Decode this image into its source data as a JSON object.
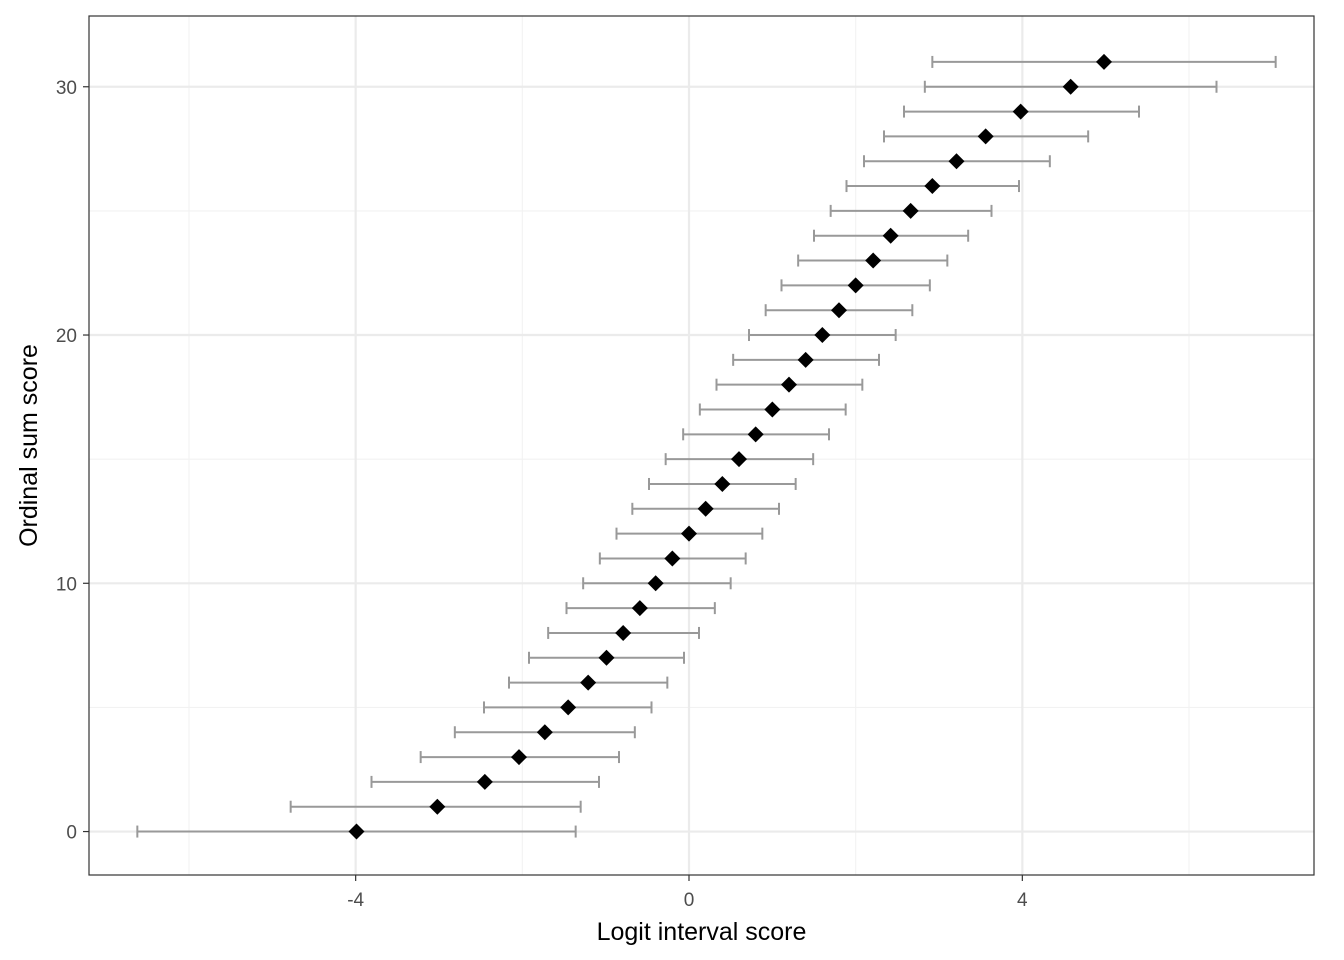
{
  "chart_data": {
    "type": "scatter",
    "xlabel": "Logit interval score",
    "ylabel": "Ordinal sum score",
    "xlim": [
      -7.2,
      7.5
    ],
    "ylim": [
      -1.75,
      32.85
    ],
    "xticks": [
      -4,
      0,
      4
    ],
    "xtick_labels": [
      "-4",
      "0",
      "4"
    ],
    "yticks": [
      0,
      10,
      20,
      30
    ],
    "ytick_labels": [
      "0",
      "10",
      "20",
      "30"
    ],
    "x_minor_grid": [
      -6,
      -2,
      2,
      6
    ],
    "y_minor_grid": [
      5,
      15,
      25
    ],
    "grid": true,
    "legend": "none",
    "point_shape": "diamond",
    "colors": {
      "point": "#000000",
      "errorbar": "#999999",
      "grid_major": "#ebebeb",
      "grid_minor": "#f2f2f2",
      "panel_border": "#333333",
      "tick_label": "#4d4d4d"
    },
    "points": [
      {
        "y": 0,
        "x": -3.99,
        "lo": -6.62,
        "hi": -1.36
      },
      {
        "y": 1,
        "x": -3.02,
        "lo": -4.78,
        "hi": -1.3
      },
      {
        "y": 2,
        "x": -2.45,
        "lo": -3.81,
        "hi": -1.08
      },
      {
        "y": 3,
        "x": -2.04,
        "lo": -3.22,
        "hi": -0.84
      },
      {
        "y": 4,
        "x": -1.73,
        "lo": -2.81,
        "hi": -0.65
      },
      {
        "y": 5,
        "x": -1.45,
        "lo": -2.46,
        "hi": -0.45
      },
      {
        "y": 6,
        "x": -1.21,
        "lo": -2.16,
        "hi": -0.26
      },
      {
        "y": 7,
        "x": -0.99,
        "lo": -1.92,
        "hi": -0.06
      },
      {
        "y": 8,
        "x": -0.79,
        "lo": -1.69,
        "hi": 0.12
      },
      {
        "y": 9,
        "x": -0.59,
        "lo": -1.47,
        "hi": 0.31
      },
      {
        "y": 10,
        "x": -0.4,
        "lo": -1.27,
        "hi": 0.5
      },
      {
        "y": 11,
        "x": -0.2,
        "lo": -1.07,
        "hi": 0.68
      },
      {
        "y": 12,
        "x": 0.0,
        "lo": -0.87,
        "hi": 0.88
      },
      {
        "y": 13,
        "x": 0.2,
        "lo": -0.68,
        "hi": 1.08
      },
      {
        "y": 14,
        "x": 0.4,
        "lo": -0.48,
        "hi": 1.28
      },
      {
        "y": 15,
        "x": 0.6,
        "lo": -0.28,
        "hi": 1.49
      },
      {
        "y": 16,
        "x": 0.8,
        "lo": -0.07,
        "hi": 1.68
      },
      {
        "y": 17,
        "x": 1.0,
        "lo": 0.13,
        "hi": 1.88
      },
      {
        "y": 18,
        "x": 1.2,
        "lo": 0.33,
        "hi": 2.08
      },
      {
        "y": 19,
        "x": 1.4,
        "lo": 0.53,
        "hi": 2.28
      },
      {
        "y": 20,
        "x": 1.6,
        "lo": 0.72,
        "hi": 2.48
      },
      {
        "y": 21,
        "x": 1.8,
        "lo": 0.92,
        "hi": 2.68
      },
      {
        "y": 22,
        "x": 2.0,
        "lo": 1.11,
        "hi": 2.89
      },
      {
        "y": 23,
        "x": 2.21,
        "lo": 1.31,
        "hi": 3.1
      },
      {
        "y": 24,
        "x": 2.42,
        "lo": 1.5,
        "hi": 3.35
      },
      {
        "y": 25,
        "x": 2.66,
        "lo": 1.7,
        "hi": 3.63
      },
      {
        "y": 26,
        "x": 2.92,
        "lo": 1.89,
        "hi": 3.96
      },
      {
        "y": 27,
        "x": 3.21,
        "lo": 2.1,
        "hi": 4.33
      },
      {
        "y": 28,
        "x": 3.56,
        "lo": 2.34,
        "hi": 4.79
      },
      {
        "y": 29,
        "x": 3.98,
        "lo": 2.58,
        "hi": 5.4
      },
      {
        "y": 30,
        "x": 4.58,
        "lo": 2.83,
        "hi": 6.33
      },
      {
        "y": 31,
        "x": 4.98,
        "lo": 2.92,
        "hi": 7.04
      }
    ]
  }
}
